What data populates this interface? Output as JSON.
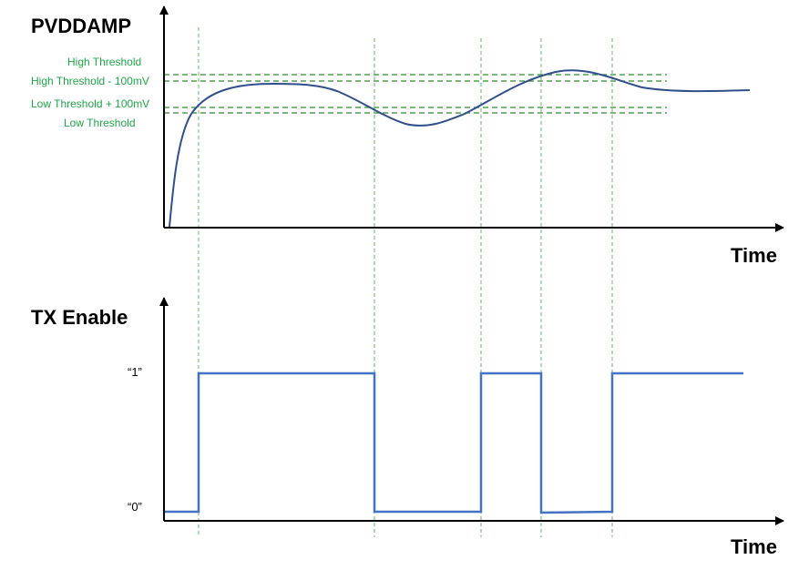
{
  "colors": {
    "axis": "#000000",
    "threshold": "#2e8b2e",
    "threshold_label": "#1ea54a",
    "guide": "#3aa53a",
    "voltage_curve": "#2f4f8c",
    "tx_signal": "#4472c4"
  },
  "top_chart": {
    "title": "PVDDAMP",
    "x_axis_label": "Time",
    "thresholds": [
      {
        "key": "high",
        "label": "High Threshold"
      },
      {
        "key": "high_minus",
        "label": "High Threshold - 100mV"
      },
      {
        "key": "low_plus",
        "label": "Low Threshold + 100mV"
      },
      {
        "key": "low",
        "label": "Low Threshold"
      }
    ]
  },
  "bottom_chart": {
    "title": "TX Enable",
    "x_axis_label": "Time",
    "level_high_label": "“1”",
    "level_low_label": "“0”",
    "states": [
      0,
      1,
      0,
      1,
      0,
      1
    ]
  }
}
